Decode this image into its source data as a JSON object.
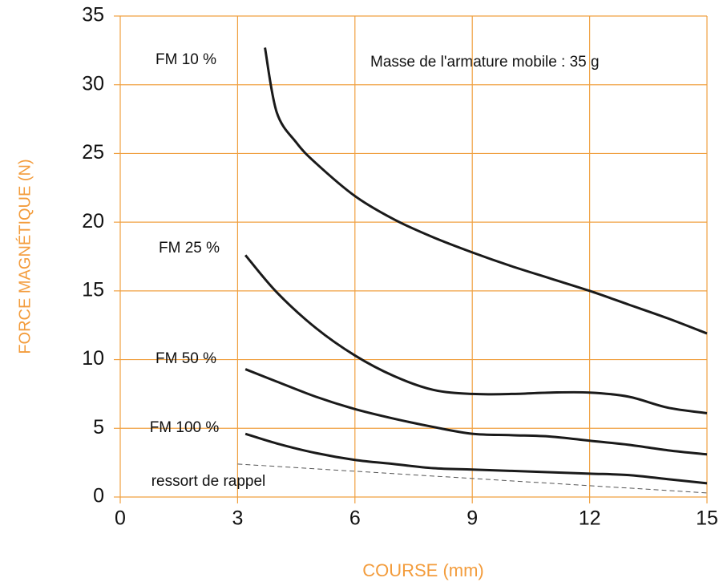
{
  "chart_data": {
    "type": "line",
    "xlabel": "COURSE (mm)",
    "ylabel": "FORCE MAGNÉTIQUE  (N)",
    "annotation": "Masse de l'armature mobile : 35 g",
    "xlim": [
      0,
      15
    ],
    "xticks": [
      0,
      3,
      6,
      9,
      12,
      15
    ],
    "ylim": [
      0,
      35
    ],
    "yticks": [
      0,
      5,
      10,
      15,
      20,
      25,
      30,
      35
    ],
    "grid": true,
    "grid_color": "#f0a040",
    "axis_label_color": "#f39c3c",
    "series": [
      {
        "name": "FM 10 %",
        "color": "#1a1a1a",
        "x": [
          3.7,
          4,
          4.5,
          5,
          6,
          7,
          8,
          9,
          10,
          11,
          12,
          13,
          14,
          15
        ],
        "values": [
          32.7,
          28,
          25.8,
          24.3,
          21.9,
          20.2,
          18.9,
          17.8,
          16.8,
          15.9,
          15,
          14,
          13,
          11.9
        ]
      },
      {
        "name": "FM 25 %",
        "color": "#1a1a1a",
        "x": [
          3.2,
          4,
          5,
          6,
          7,
          8,
          9,
          10,
          11,
          12,
          13,
          14,
          15
        ],
        "values": [
          17.6,
          14.9,
          12.3,
          10.3,
          8.8,
          7.8,
          7.5,
          7.5,
          7.6,
          7.6,
          7.3,
          6.5,
          6.1
        ]
      },
      {
        "name": "FM 50 %",
        "color": "#1a1a1a",
        "x": [
          3.2,
          4,
          5,
          6,
          7,
          8,
          9,
          10,
          11,
          12,
          13,
          14,
          15
        ],
        "values": [
          9.3,
          8.4,
          7.3,
          6.4,
          5.7,
          5.1,
          4.6,
          4.5,
          4.4,
          4.1,
          3.8,
          3.4,
          3.1
        ]
      },
      {
        "name": "FM 100 %",
        "color": "#1a1a1a",
        "x": [
          3.2,
          4,
          5,
          6,
          7,
          8,
          9,
          10,
          11,
          12,
          13,
          14,
          15
        ],
        "values": [
          4.6,
          3.9,
          3.2,
          2.7,
          2.4,
          2.1,
          2.0,
          1.9,
          1.8,
          1.7,
          1.6,
          1.3,
          1.0
        ]
      },
      {
        "name": "ressort de rappel",
        "color": "#555555",
        "dashed": true,
        "x": [
          3,
          15
        ],
        "values": [
          2.4,
          0.3
        ]
      }
    ]
  }
}
